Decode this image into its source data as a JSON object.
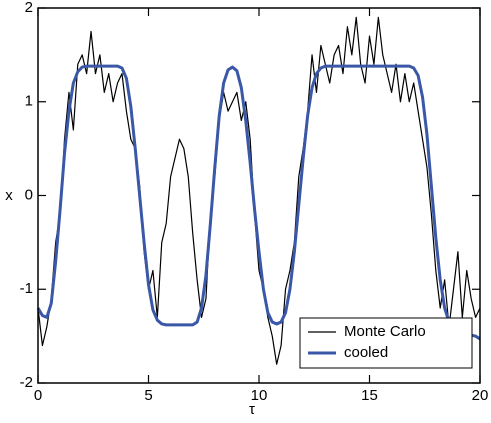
{
  "chart_data": {
    "type": "line",
    "xlabel": "τ",
    "ylabel": "x",
    "x": [
      0,
      0.2,
      0.4,
      0.6,
      0.8,
      1,
      1.2,
      1.4,
      1.6,
      1.8,
      2,
      2.2,
      2.4,
      2.6,
      2.8,
      3,
      3.2,
      3.4,
      3.6,
      3.8,
      4,
      4.2,
      4.4,
      4.6,
      4.8,
      5,
      5.2,
      5.4,
      5.6,
      5.8,
      6,
      6.2,
      6.4,
      6.6,
      6.8,
      7,
      7.2,
      7.4,
      7.6,
      7.8,
      8,
      8.2,
      8.4,
      8.6,
      8.8,
      9,
      9.2,
      9.4,
      9.6,
      9.8,
      10,
      10.2,
      10.4,
      10.6,
      10.8,
      11,
      11.2,
      11.4,
      11.6,
      11.8,
      12,
      12.2,
      12.4,
      12.6,
      12.8,
      13,
      13.2,
      13.4,
      13.6,
      13.8,
      14,
      14.2,
      14.4,
      14.6,
      14.8,
      15,
      15.2,
      15.4,
      15.6,
      15.8,
      16,
      16.2,
      16.4,
      16.6,
      16.8,
      17,
      17.2,
      17.4,
      17.6,
      17.8,
      18,
      18.2,
      18.4,
      18.6,
      18.8,
      19,
      19.2,
      19.4,
      19.6,
      19.8,
      20
    ],
    "series": [
      {
        "name": "Monte Carlo",
        "color": "#000000",
        "width": 1.2,
        "values": [
          -1.2,
          -1.6,
          -1.4,
          -1.1,
          -0.5,
          -0.2,
          0.6,
          1.1,
          0.7,
          1.4,
          1.5,
          1.3,
          1.75,
          1.3,
          1.5,
          1.1,
          1.3,
          1.0,
          1.2,
          1.3,
          0.9,
          0.6,
          0.5,
          0.1,
          -0.6,
          -1.0,
          -0.8,
          -1.3,
          -0.5,
          -0.3,
          0.2,
          0.4,
          0.6,
          0.5,
          0.2,
          -0.4,
          -0.9,
          -1.3,
          -1.1,
          -0.2,
          0.2,
          0.8,
          1.1,
          0.9,
          1.0,
          1.1,
          0.8,
          1.0,
          0.6,
          -0.2,
          -0.8,
          -1.0,
          -1.3,
          -1.5,
          -1.8,
          -1.6,
          -1.0,
          -0.8,
          -0.5,
          0.2,
          0.5,
          0.9,
          1.5,
          1.1,
          1.6,
          1.4,
          1.2,
          1.5,
          1.6,
          1.3,
          1.8,
          1.5,
          1.9,
          1.4,
          1.2,
          1.7,
          1.4,
          1.9,
          1.5,
          1.3,
          1.1,
          1.4,
          1.0,
          1.3,
          1.0,
          1.2,
          0.9,
          0.6,
          0.3,
          -0.2,
          -0.8,
          -1.2,
          -0.9,
          -1.4,
          -1.0,
          -0.6,
          -1.3,
          -0.8,
          -1.1,
          -1.3,
          -1.2
        ]
      },
      {
        "name": "cooled",
        "color": "#3a57a8",
        "width": 3,
        "values": [
          -1.2,
          -1.28,
          -1.3,
          -1.15,
          -0.7,
          -0.15,
          0.45,
          0.9,
          1.2,
          1.32,
          1.37,
          1.38,
          1.38,
          1.38,
          1.38,
          1.38,
          1.38,
          1.38,
          1.38,
          1.36,
          1.25,
          0.95,
          0.5,
          0.0,
          -0.5,
          -0.95,
          -1.22,
          -1.33,
          -1.37,
          -1.38,
          -1.38,
          -1.38,
          -1.38,
          -1.38,
          -1.38,
          -1.38,
          -1.35,
          -1.2,
          -0.85,
          -0.3,
          0.3,
          0.85,
          1.2,
          1.34,
          1.37,
          1.33,
          1.15,
          0.8,
          0.35,
          -0.15,
          -0.6,
          -1.0,
          -1.25,
          -1.35,
          -1.37,
          -1.35,
          -1.25,
          -1.0,
          -0.6,
          -0.1,
          0.4,
          0.85,
          1.15,
          1.3,
          1.36,
          1.38,
          1.38,
          1.38,
          1.38,
          1.38,
          1.38,
          1.38,
          1.38,
          1.38,
          1.38,
          1.38,
          1.38,
          1.38,
          1.38,
          1.38,
          1.38,
          1.38,
          1.38,
          1.38,
          1.38,
          1.36,
          1.28,
          1.05,
          0.65,
          0.1,
          -0.45,
          -0.9,
          -1.2,
          -1.35,
          -1.42,
          -1.45,
          -1.47,
          -1.48,
          -1.49,
          -1.5,
          -1.53
        ]
      }
    ],
    "xlim": [
      0,
      20
    ],
    "xticks": [
      0,
      5,
      10,
      15,
      20
    ],
    "ylim": [
      -2,
      2
    ],
    "yticks": [
      -2,
      -1,
      0,
      1,
      2
    ],
    "legend": "lower right"
  }
}
